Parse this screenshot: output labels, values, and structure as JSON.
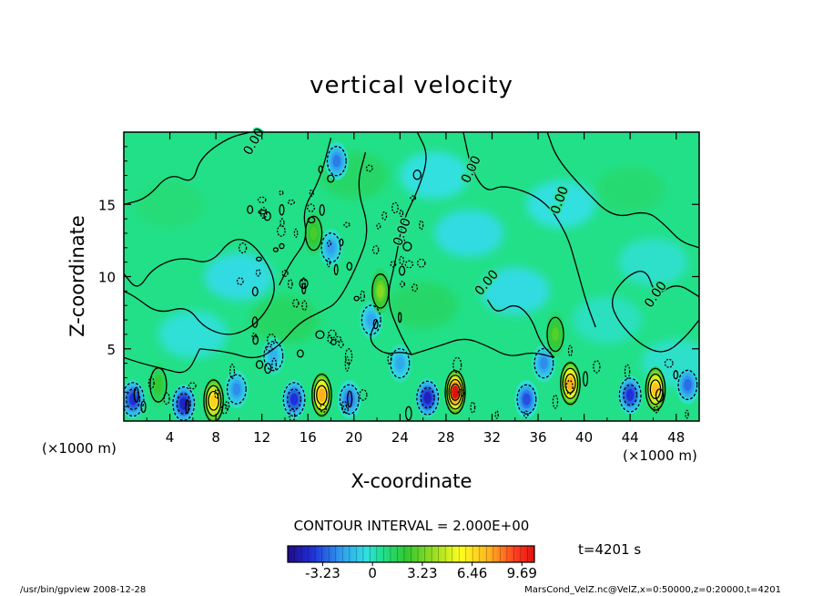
{
  "chart_data": {
    "type": "heatmap",
    "title": "vertical velocity",
    "xlabel": "X-coordinate",
    "ylabel": "Z-coordinate",
    "x_unit": "(×1000 m)",
    "y_unit": "(×1000 m)",
    "xlim": [
      0,
      50
    ],
    "ylim": [
      0,
      20
    ],
    "x_ticks": [
      "4",
      "8",
      "12",
      "16",
      "20",
      "24",
      "28",
      "32",
      "36",
      "40",
      "44",
      "48"
    ],
    "y_ticks": [
      "5",
      "10",
      "15"
    ],
    "contour_interval_text": "CONTOUR INTERVAL = 2.000E+00",
    "contour_labels": [
      "0.00",
      "0.00",
      "0.00",
      "0.00",
      "0.00",
      "0.00"
    ],
    "colorbar": {
      "tick_labels": [
        "-3.23",
        "0",
        "3.23",
        "6.46",
        "9.69"
      ],
      "tick_values": [
        -3.23,
        0,
        3.23,
        6.46,
        9.69
      ],
      "range": [
        -5.5,
        10.5
      ]
    },
    "time_label": "t=4201 s",
    "updrafts": [
      {
        "x": 7.8,
        "z": 1.4,
        "w": 6.5
      },
      {
        "x": 17.2,
        "z": 1.8,
        "w": 7.5
      },
      {
        "x": 28.8,
        "z": 2.0,
        "w": 9.7
      },
      {
        "x": 38.8,
        "z": 2.6,
        "w": 7.5
      },
      {
        "x": 46.2,
        "z": 2.2,
        "w": 7.0
      },
      {
        "x": 22.3,
        "z": 9.0,
        "w": 3.0
      },
      {
        "x": 16.5,
        "z": 13.0,
        "w": 2.0
      },
      {
        "x": 37.5,
        "z": 6.0,
        "w": 2.2
      },
      {
        "x": 3.0,
        "z": 2.5,
        "w": 1.5
      }
    ],
    "downdrafts": [
      {
        "x": 5.2,
        "z": 1.2,
        "w": -4.5
      },
      {
        "x": 0.8,
        "z": 1.5,
        "w": -4.0
      },
      {
        "x": 14.8,
        "z": 1.5,
        "w": -4.0
      },
      {
        "x": 19.6,
        "z": 1.5,
        "w": -3.0
      },
      {
        "x": 26.4,
        "z": 1.6,
        "w": -4.5
      },
      {
        "x": 35.0,
        "z": 1.5,
        "w": -3.5
      },
      {
        "x": 44.0,
        "z": 1.8,
        "w": -4.0
      },
      {
        "x": 9.8,
        "z": 2.2,
        "w": -2.5
      },
      {
        "x": 49.0,
        "z": 2.5,
        "w": -3.0
      },
      {
        "x": 18.5,
        "z": 18.0,
        "w": -2.8
      },
      {
        "x": 18.0,
        "z": 12.0,
        "w": -2.2
      },
      {
        "x": 21.5,
        "z": 7.0,
        "w": -2.0
      },
      {
        "x": 36.5,
        "z": 4.0,
        "w": -2.5
      },
      {
        "x": 24.0,
        "z": 4.0,
        "w": -2.0
      },
      {
        "x": 13.0,
        "z": 4.5,
        "w": -1.8
      }
    ]
  },
  "footer": {
    "left": "/usr/bin/gpview   2008-12-28",
    "right": "MarsCond_VelZ.nc@VelZ,x=0:50000,z=0:20000,t=4201"
  }
}
